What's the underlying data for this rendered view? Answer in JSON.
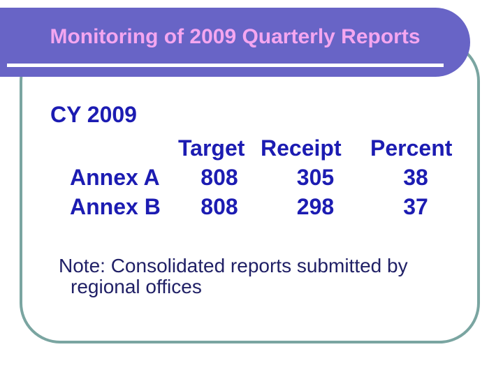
{
  "slide": {
    "title": "Monitoring of 2009 Quarterly Reports",
    "heading": "CY 2009",
    "table": {
      "columns": [
        "Target",
        "Receipt",
        "Percent"
      ],
      "rows": [
        {
          "label": "Annex A",
          "target": "808",
          "receipt": "305",
          "percent": "38"
        },
        {
          "label": "Annex B",
          "target": "808",
          "receipt": "298",
          "percent": "37"
        }
      ]
    },
    "note": {
      "line1": "Note: Consolidated reports submitted by",
      "line2": "regional offices"
    },
    "colors": {
      "banner": "#6864C6",
      "title_text": "#F4A6F0",
      "underline": "#FFFFFF",
      "frame_border": "#7AA5A1",
      "table_text": "#1C1CB2",
      "note_text": "#202066"
    }
  }
}
